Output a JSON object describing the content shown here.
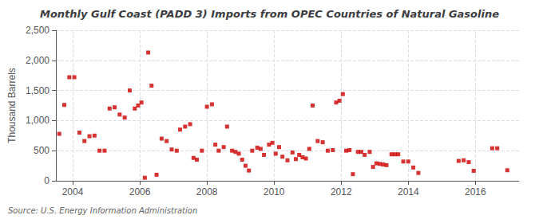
{
  "chart_data": {
    "type": "scatter",
    "title": "Monthly Gulf Coast (PADD 3) Imports from OPEC Countries of Natural Gasoline",
    "ylabel": "Thousand Barrels",
    "annotation": "Source: U.S. Energy Information Administration",
    "color": "#CC0000",
    "marker": "square",
    "grid": true,
    "xlim": [
      2003.5,
      2017.3
    ],
    "xticks": [
      2004,
      2006,
      2008,
      2010,
      2012,
      2014,
      2016
    ],
    "ylim": [
      0,
      2500
    ],
    "yticks": [
      0,
      500,
      {
        "value": 1000,
        "label": "1,000"
      },
      {
        "value": 1500,
        "label": "1,500"
      },
      {
        "value": 2000,
        "label": "2,000"
      },
      {
        "value": 2500,
        "label": "2,500"
      }
    ],
    "x": [
      2003.6,
      2003.75,
      2003.9,
      2004.05,
      2004.2,
      2004.35,
      2004.5,
      2004.65,
      2004.8,
      2004.95,
      2005.1,
      2005.25,
      2005.4,
      2005.55,
      2005.7,
      2005.85,
      2005.95,
      2006.05,
      2006.15,
      2006.25,
      2006.35,
      2006.5,
      2006.65,
      2006.8,
      2006.95,
      2007.1,
      2007.2,
      2007.35,
      2007.5,
      2007.6,
      2007.7,
      2007.85,
      2008.0,
      2008.15,
      2008.25,
      2008.35,
      2008.5,
      2008.6,
      2008.75,
      2008.85,
      2008.95,
      2009.05,
      2009.15,
      2009.25,
      2009.35,
      2009.5,
      2009.6,
      2009.7,
      2009.85,
      2009.95,
      2010.05,
      2010.15,
      2010.25,
      2010.4,
      2010.55,
      2010.65,
      2010.75,
      2010.85,
      2010.95,
      2011.05,
      2011.15,
      2011.3,
      2011.45,
      2011.6,
      2011.75,
      2011.85,
      2011.95,
      2012.05,
      2012.15,
      2012.25,
      2012.35,
      2012.5,
      2012.6,
      2012.7,
      2012.85,
      2012.95,
      2013.05,
      2013.15,
      2013.25,
      2013.35,
      2013.5,
      2013.6,
      2013.7,
      2013.85,
      2014.0,
      2014.15,
      2014.3,
      2015.5,
      2015.65,
      2015.8,
      2015.95,
      2016.5,
      2016.65,
      2016.95
    ],
    "values": [
      780,
      1260,
      1720,
      1720,
      800,
      660,
      740,
      750,
      500,
      500,
      1200,
      1220,
      1100,
      1050,
      1500,
      1200,
      1250,
      1300,
      50,
      2130,
      1580,
      100,
      700,
      660,
      520,
      500,
      850,
      900,
      940,
      380,
      350,
      500,
      1230,
      1270,
      600,
      500,
      560,
      900,
      500,
      480,
      450,
      350,
      250,
      170,
      500,
      550,
      530,
      430,
      600,
      630,
      450,
      560,
      400,
      340,
      470,
      360,
      430,
      390,
      370,
      530,
      1250,
      660,
      640,
      500,
      510,
      1300,
      1330,
      1440,
      500,
      510,
      110,
      480,
      480,
      430,
      480,
      230,
      290,
      280,
      270,
      260,
      440,
      440,
      440,
      320,
      320,
      220,
      130,
      330,
      340,
      310,
      165,
      540,
      540,
      175
    ]
  }
}
